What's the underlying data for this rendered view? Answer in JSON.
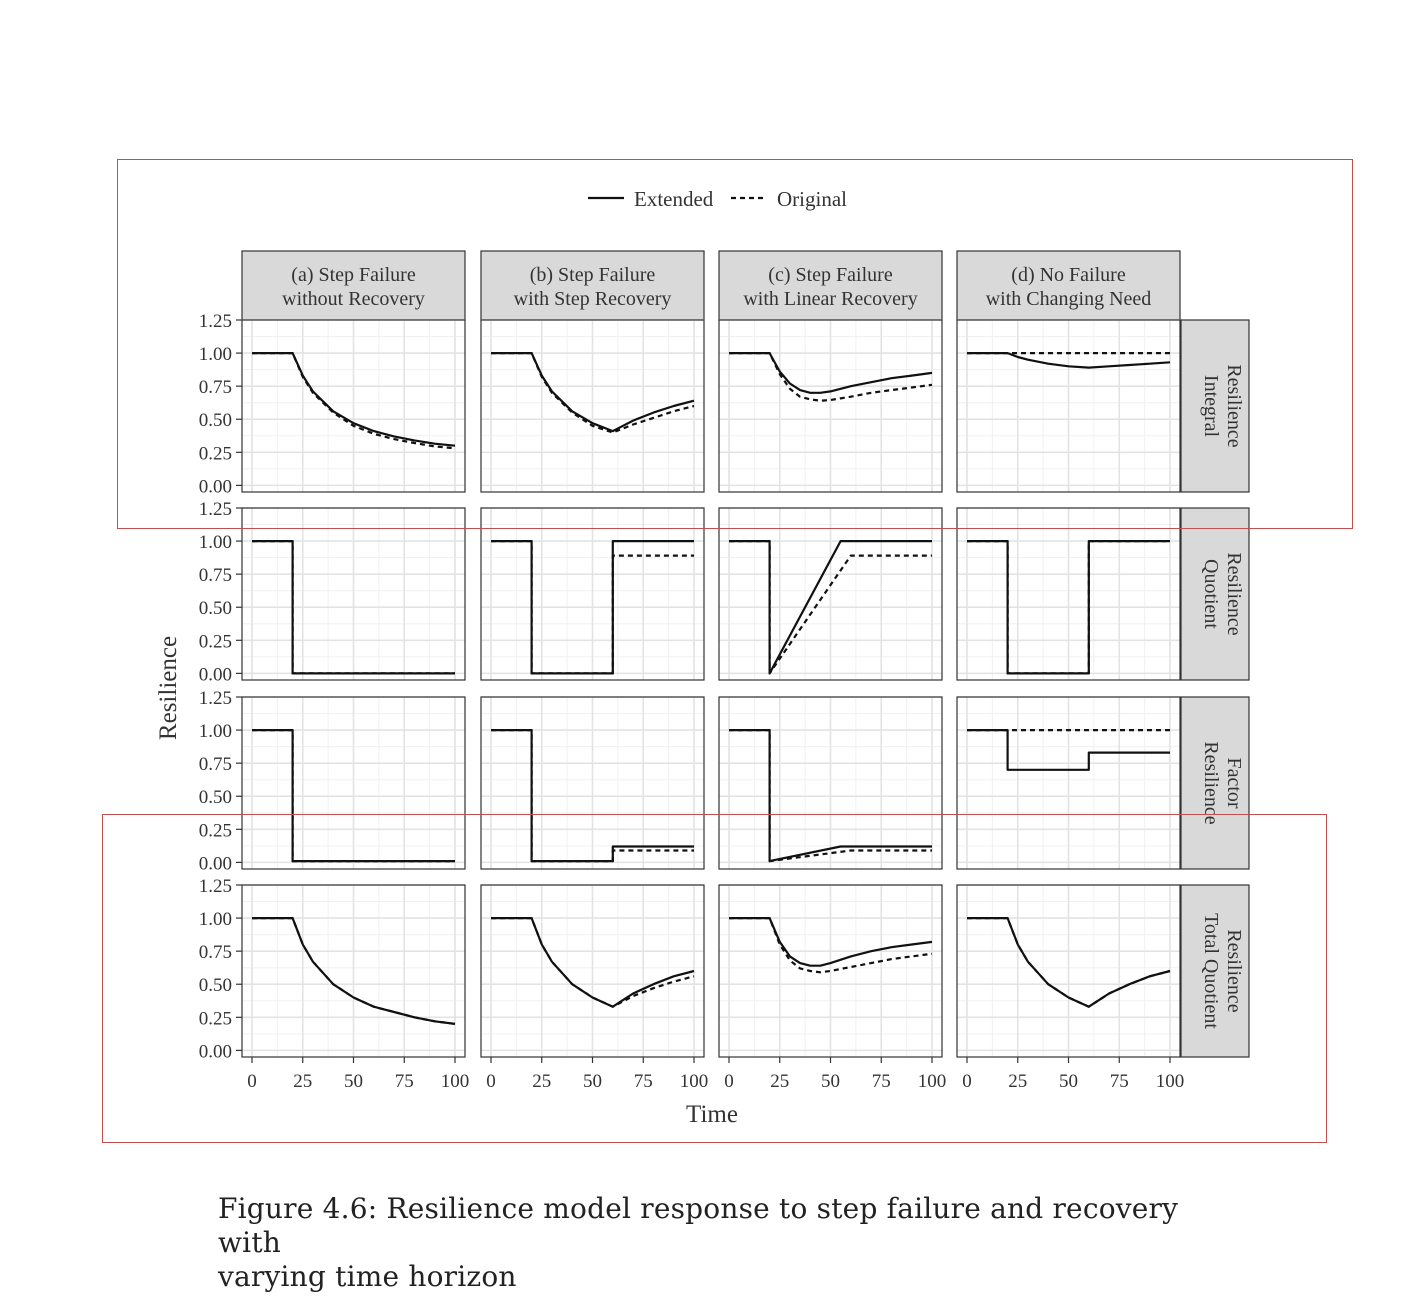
{
  "legend": {
    "extended_label": "Extended",
    "original_label": "Original"
  },
  "caption": {
    "line1": "Figure 4.6: Resilience model response to step failure and recovery with",
    "line2": "varying time horizon"
  },
  "chart_data": {
    "type": "line",
    "xlabel": "Time",
    "ylabel": "Resilience",
    "xlim": [
      0,
      100
    ],
    "ylim": [
      0,
      1.25
    ],
    "x_ticks": [
      0,
      25,
      50,
      75,
      100
    ],
    "y_ticks": [
      0.0,
      0.25,
      0.5,
      0.75,
      1.0,
      1.25
    ],
    "y_tick_labels": [
      "0.00",
      "0.25",
      "0.50",
      "0.75",
      "1.00",
      "1.25"
    ],
    "grid": true,
    "legend_position": "top",
    "columns": [
      {
        "line1": "(a) Step Failure",
        "line2": "without Recovery"
      },
      {
        "line1": "(b) Step Failure",
        "line2": "with Step Recovery"
      },
      {
        "line1": "(c) Step Failure",
        "line2": "with Linear Recovery"
      },
      {
        "line1": "(d) No Failure",
        "line2": "with Changing Need"
      }
    ],
    "rows": [
      {
        "line1": "Integral",
        "line2": "Resilience"
      },
      {
        "line1": "Quotient",
        "line2": "Resilience"
      },
      {
        "line1": "Resilience",
        "line2": "Factor"
      },
      {
        "line1": "Total Quotient",
        "line2": "Resilience"
      }
    ],
    "series": [
      {
        "name": "Extended",
        "style": "solid",
        "panels": [
          [
            {
              "x": [
                0,
                20,
                25,
                30,
                40,
                50,
                60,
                70,
                80,
                90,
                100
              ],
              "y": [
                1,
                1,
                0.83,
                0.71,
                0.56,
                0.47,
                0.41,
                0.37,
                0.34,
                0.315,
                0.3
              ]
            },
            {
              "x": [
                0,
                20,
                25,
                30,
                40,
                50,
                60,
                65,
                70,
                80,
                90,
                100
              ],
              "y": [
                1,
                1,
                0.83,
                0.71,
                0.56,
                0.47,
                0.41,
                0.45,
                0.49,
                0.55,
                0.6,
                0.64
              ]
            },
            {
              "x": [
                0,
                20,
                25,
                30,
                35,
                40,
                45,
                50,
                60,
                70,
                80,
                90,
                100
              ],
              "y": [
                1,
                1,
                0.86,
                0.77,
                0.72,
                0.7,
                0.7,
                0.71,
                0.75,
                0.78,
                0.81,
                0.83,
                0.85
              ]
            },
            {
              "x": [
                0,
                20,
                25,
                30,
                40,
                50,
                60,
                70,
                80,
                90,
                100
              ],
              "y": [
                1,
                1,
                0.97,
                0.95,
                0.92,
                0.9,
                0.89,
                0.9,
                0.91,
                0.92,
                0.93
              ]
            }
          ],
          [
            {
              "x": [
                0,
                20,
                20,
                100
              ],
              "y": [
                1,
                1,
                0,
                0
              ]
            },
            {
              "x": [
                0,
                20,
                20,
                60,
                60,
                100
              ],
              "y": [
                1,
                1,
                0,
                0,
                1,
                1
              ]
            },
            {
              "x": [
                0,
                20,
                20,
                55,
                100
              ],
              "y": [
                1,
                1,
                0,
                1,
                1
              ]
            },
            {
              "x": [
                0,
                20,
                20,
                60,
                60,
                100
              ],
              "y": [
                1,
                1,
                0,
                0,
                1,
                1
              ]
            }
          ],
          [
            {
              "x": [
                0,
                20,
                20,
                100
              ],
              "y": [
                1,
                1,
                0.01,
                0.01
              ]
            },
            {
              "x": [
                0,
                20,
                20,
                60,
                60,
                100
              ],
              "y": [
                1,
                1,
                0.01,
                0.01,
                0.12,
                0.12
              ]
            },
            {
              "x": [
                0,
                20,
                20,
                55,
                100
              ],
              "y": [
                1,
                1,
                0.01,
                0.12,
                0.12
              ]
            },
            {
              "x": [
                0,
                20,
                20,
                60,
                60,
                100
              ],
              "y": [
                1,
                1,
                0.7,
                0.7,
                0.83,
                0.83
              ]
            }
          ],
          [
            {
              "x": [
                0,
                20,
                25,
                30,
                40,
                50,
                60,
                70,
                80,
                90,
                100
              ],
              "y": [
                1,
                1,
                0.8,
                0.67,
                0.5,
                0.4,
                0.33,
                0.29,
                0.25,
                0.22,
                0.2
              ]
            },
            {
              "x": [
                0,
                20,
                25,
                30,
                40,
                50,
                60,
                65,
                70,
                80,
                90,
                100
              ],
              "y": [
                1,
                1,
                0.8,
                0.67,
                0.5,
                0.4,
                0.33,
                0.38,
                0.43,
                0.5,
                0.56,
                0.6
              ]
            },
            {
              "x": [
                0,
                20,
                25,
                30,
                35,
                40,
                45,
                50,
                60,
                70,
                80,
                90,
                100
              ],
              "y": [
                1,
                1,
                0.82,
                0.71,
                0.66,
                0.64,
                0.64,
                0.66,
                0.71,
                0.75,
                0.78,
                0.8,
                0.82
              ]
            },
            {
              "x": [
                0,
                20,
                25,
                30,
                40,
                50,
                60,
                65,
                70,
                80,
                90,
                100
              ],
              "y": [
                1,
                1,
                0.8,
                0.67,
                0.5,
                0.4,
                0.33,
                0.38,
                0.43,
                0.5,
                0.56,
                0.6
              ]
            }
          ]
        ]
      },
      {
        "name": "Original",
        "style": "dashed",
        "panels": [
          [
            {
              "x": [
                0,
                20,
                25,
                30,
                40,
                50,
                60,
                70,
                80,
                90,
                100
              ],
              "y": [
                1,
                1,
                0.82,
                0.7,
                0.55,
                0.45,
                0.39,
                0.35,
                0.32,
                0.295,
                0.28
              ]
            },
            {
              "x": [
                0,
                20,
                25,
                30,
                40,
                50,
                60,
                65,
                70,
                80,
                90,
                100
              ],
              "y": [
                1,
                1,
                0.82,
                0.7,
                0.55,
                0.45,
                0.4,
                0.43,
                0.46,
                0.51,
                0.56,
                0.6
              ]
            },
            {
              "x": [
                0,
                20,
                25,
                30,
                35,
                40,
                45,
                50,
                60,
                70,
                80,
                90,
                100
              ],
              "y": [
                1,
                1,
                0.84,
                0.73,
                0.67,
                0.65,
                0.64,
                0.645,
                0.67,
                0.7,
                0.72,
                0.74,
                0.76
              ]
            },
            {
              "x": [
                0,
                100
              ],
              "y": [
                1,
                1
              ]
            }
          ],
          [
            {
              "x": [
                0,
                20,
                20,
                100
              ],
              "y": [
                1,
                1,
                0,
                0
              ]
            },
            {
              "x": [
                0,
                20,
                20,
                60,
                60,
                100
              ],
              "y": [
                1,
                1,
                0,
                0,
                0.89,
                0.89
              ]
            },
            {
              "x": [
                0,
                20,
                20,
                60,
                100
              ],
              "y": [
                1,
                1,
                0,
                0.89,
                0.89
              ]
            },
            {
              "x": [
                0,
                20,
                20,
                60,
                60,
                100
              ],
              "y": [
                1,
                1,
                0,
                0,
                1,
                1
              ]
            }
          ],
          [
            {
              "x": [
                0,
                20,
                20,
                100
              ],
              "y": [
                1,
                1,
                0.01,
                0.01
              ]
            },
            {
              "x": [
                0,
                20,
                20,
                60,
                60,
                100
              ],
              "y": [
                1,
                1,
                0.01,
                0.01,
                0.09,
                0.09
              ]
            },
            {
              "x": [
                0,
                20,
                20,
                60,
                100
              ],
              "y": [
                1,
                1,
                0.01,
                0.09,
                0.09
              ]
            },
            {
              "x": [
                0,
                100
              ],
              "y": [
                1,
                1
              ]
            }
          ],
          [
            {
              "x": [
                0,
                20,
                25,
                30,
                40,
                50,
                60,
                70,
                80,
                90,
                100
              ],
              "y": [
                1,
                1,
                0.8,
                0.67,
                0.5,
                0.4,
                0.33,
                0.29,
                0.25,
                0.22,
                0.2
              ]
            },
            {
              "x": [
                0,
                20,
                25,
                30,
                40,
                50,
                60,
                65,
                70,
                80,
                90,
                100
              ],
              "y": [
                1,
                1,
                0.8,
                0.67,
                0.5,
                0.4,
                0.33,
                0.37,
                0.41,
                0.47,
                0.52,
                0.56
              ]
            },
            {
              "x": [
                0,
                20,
                25,
                30,
                35,
                40,
                45,
                50,
                60,
                70,
                80,
                90,
                100
              ],
              "y": [
                1,
                1,
                0.8,
                0.68,
                0.62,
                0.6,
                0.59,
                0.6,
                0.63,
                0.66,
                0.69,
                0.71,
                0.73
              ]
            },
            {
              "x": [
                0,
                20,
                25,
                30,
                40,
                50,
                60,
                65,
                70,
                80,
                90,
                100
              ],
              "y": [
                1,
                1,
                0.8,
                0.67,
                0.5,
                0.4,
                0.33,
                0.38,
                0.43,
                0.5,
                0.56,
                0.6
              ]
            }
          ]
        ]
      }
    ]
  }
}
